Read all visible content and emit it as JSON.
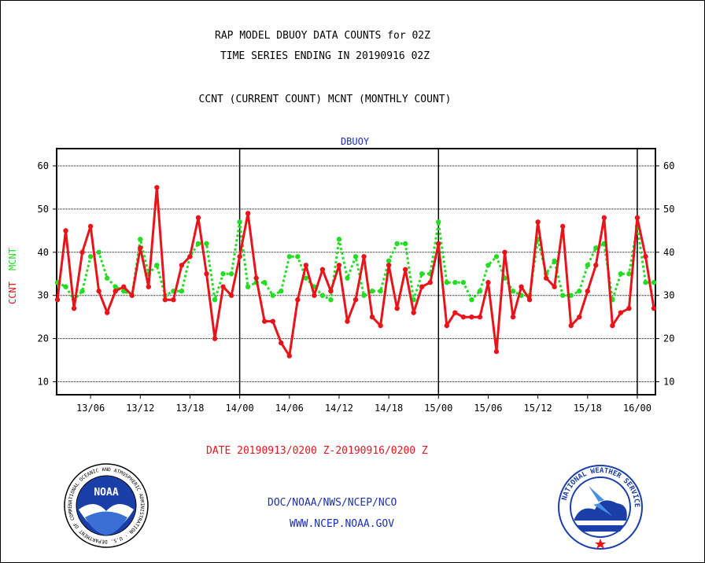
{
  "header": {
    "title_line1": "RAP MODEL DBUOY DATA COUNTS for 02Z",
    "title_line2": "TIME SERIES ENDING IN 20190916 02Z",
    "title_line3": "CCNT (CURRENT COUNT) MCNT (MONTHLY COUNT)"
  },
  "footer": {
    "date_range": "DATE 20190913/0200 Z-20190916/0200 Z",
    "org_line": "DOC/NOAA/NWS/NCEP/NCO",
    "url_line": "WWW.NCEP.NOAA.GOV"
  },
  "logos": {
    "noaa": {
      "label": "NOAA",
      "ring_text": "NATIONAL OCEANIC AND ATMOSPHERIC ADMINISTRATION · U.S. DEPARTMENT OF COMMERCE"
    },
    "nws": {
      "ring_text": "NATIONAL WEATHER SERVICE"
    }
  },
  "colors": {
    "ccnt": "#e8141a",
    "mcnt": "#22dd22",
    "text_blue": "#1a2fb4",
    "footer_red": "#e8141a"
  },
  "chart_data": {
    "type": "line",
    "title": "DBUOY",
    "ylabel_left_1": "CCNT",
    "ylabel_left_2": "MCNT",
    "ylim": [
      7,
      64
    ],
    "yticks": [
      10,
      20,
      30,
      40,
      50,
      60
    ],
    "grid": true,
    "x_ticks": [
      {
        "h": 4,
        "label": "13/06"
      },
      {
        "h": 10,
        "label": "13/12"
      },
      {
        "h": 16,
        "label": "13/18"
      },
      {
        "h": 22,
        "label": "14/00"
      },
      {
        "h": 28,
        "label": "14/06"
      },
      {
        "h": 34,
        "label": "14/12"
      },
      {
        "h": 40,
        "label": "14/18"
      },
      {
        "h": 46,
        "label": "15/00"
      },
      {
        "h": 52,
        "label": "15/06"
      },
      {
        "h": 58,
        "label": "15/12"
      },
      {
        "h": 64,
        "label": "15/18"
      },
      {
        "h": 70,
        "label": "16/00"
      }
    ],
    "day_boundaries": [
      22,
      46,
      70
    ],
    "x_hours": [
      0,
      1,
      2,
      3,
      4,
      5,
      6,
      7,
      8,
      9,
      10,
      11,
      12,
      13,
      14,
      15,
      16,
      17,
      18,
      19,
      20,
      21,
      22,
      23,
      24,
      25,
      26,
      27,
      28,
      29,
      30,
      31,
      32,
      33,
      34,
      35,
      36,
      37,
      38,
      39,
      40,
      41,
      42,
      43,
      44,
      45,
      46,
      47,
      48,
      49,
      50,
      51,
      52,
      53,
      54,
      55,
      56,
      57,
      58,
      59,
      60,
      61,
      62,
      63,
      64,
      65,
      66,
      67,
      68,
      69,
      70,
      71,
      72
    ],
    "series": [
      {
        "name": "CCNT",
        "values": [
          29,
          45,
          27,
          40,
          46,
          31,
          26,
          31,
          32,
          30,
          41,
          32,
          55,
          29,
          29,
          37,
          39,
          48,
          35,
          20,
          32,
          30,
          39,
          49,
          34,
          24,
          24,
          19,
          16,
          29,
          37,
          30,
          36,
          31,
          37,
          24,
          29,
          39,
          25,
          23,
          37,
          27,
          36,
          26,
          32,
          33,
          42,
          23,
          26,
          25,
          25,
          25,
          33,
          17,
          40,
          25,
          32,
          29,
          47,
          34,
          32,
          46,
          23,
          25,
          31,
          37,
          48,
          23,
          26,
          27,
          48,
          39,
          27
        ]
      },
      {
        "name": "MCNT",
        "values": [
          33,
          32,
          29,
          31,
          39,
          40,
          34,
          32,
          31,
          30,
          43,
          35,
          37,
          30,
          31,
          31,
          39,
          42,
          42,
          29,
          35,
          35,
          47,
          32,
          33,
          33,
          30,
          31,
          39,
          39,
          34,
          32,
          30,
          29,
          43,
          34,
          39,
          30,
          31,
          31,
          38,
          42,
          42,
          29,
          35,
          35,
          47,
          33,
          33,
          33,
          29,
          31,
          37,
          39,
          34,
          31,
          30,
          30,
          43,
          35,
          38,
          30,
          30,
          31,
          37,
          41,
          42,
          29,
          35,
          35,
          46,
          33,
          33
        ]
      }
    ]
  }
}
